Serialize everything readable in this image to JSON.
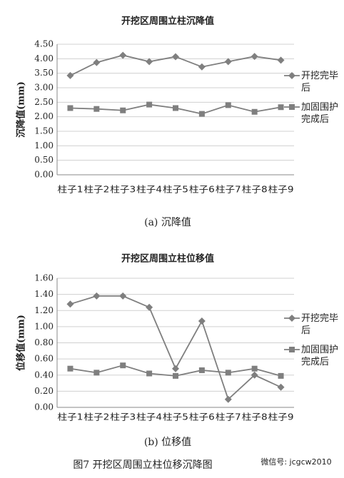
{
  "chart_data": [
    {
      "type": "line",
      "title": "开挖区周围立柱沉降值",
      "y_label": "沉降值(mm)",
      "caption": "(a) 沉降值",
      "categories": [
        "柱子1",
        "柱子2",
        "柱子3",
        "柱子4",
        "柱子5",
        "柱子6",
        "柱子7",
        "柱子8",
        "柱子9"
      ],
      "series": [
        {
          "name": "开挖完毕后",
          "color": "#7f7f7f",
          "marker": "diamond",
          "values": [
            3.42,
            3.87,
            4.12,
            3.9,
            4.07,
            3.72,
            3.9,
            4.08,
            3.95
          ]
        },
        {
          "name": "加固围护完成后",
          "color": "#7f7f7f",
          "marker": "square",
          "values": [
            2.3,
            2.27,
            2.22,
            2.42,
            2.3,
            2.1,
            2.4,
            2.17,
            2.33
          ]
        }
      ],
      "ylim": [
        0,
        4.5
      ],
      "yticks": [
        {
          "value": 0,
          "label": "0.00"
        },
        {
          "value": 0.5,
          "label": "0.50"
        },
        {
          "value": 1,
          "label": "1.00"
        },
        {
          "value": 1.5,
          "label": "1.50"
        },
        {
          "value": 2,
          "label": "2.00"
        },
        {
          "value": 2.5,
          "label": "2.50"
        },
        {
          "value": 3,
          "label": "3.00"
        },
        {
          "value": 3.5,
          "label": "3.50"
        },
        {
          "value": 4,
          "label": "4.00"
        },
        {
          "value": 4.5,
          "label": "4.50"
        }
      ],
      "grid": true,
      "legend": "right"
    },
    {
      "type": "line",
      "title": "开挖区周围立柱位移值",
      "y_label": "位移值(mm)",
      "caption": "(b) 位移值",
      "categories": [
        "柱子1",
        "柱子2",
        "柱子3",
        "柱子4",
        "柱子5",
        "柱子6",
        "柱子7",
        "柱子8",
        "柱子9"
      ],
      "series": [
        {
          "name": "开挖完毕后",
          "color": "#7f7f7f",
          "marker": "diamond",
          "values": [
            1.28,
            1.38,
            1.38,
            1.24,
            0.48,
            1.07,
            0.1,
            0.4,
            0.25
          ]
        },
        {
          "name": "加固围护完成后",
          "color": "#7f7f7f",
          "marker": "square",
          "values": [
            0.48,
            0.43,
            0.52,
            0.42,
            0.39,
            0.46,
            0.43,
            0.48,
            0.39
          ]
        }
      ],
      "ylim": [
        0,
        1.6
      ],
      "yticks": [
        {
          "value": 0,
          "label": "0.00"
        },
        {
          "value": 0.2,
          "label": "0.20"
        },
        {
          "value": 0.4,
          "label": "0.40"
        },
        {
          "value": 0.6,
          "label": "0.60"
        },
        {
          "value": 0.8,
          "label": "0.80"
        },
        {
          "value": 1,
          "label": "1.00"
        },
        {
          "value": 1.2,
          "label": "1.20"
        },
        {
          "value": 1.4,
          "label": "1.40"
        },
        {
          "value": 1.6,
          "label": "1.60"
        }
      ],
      "grid": true,
      "legend": "right"
    }
  ],
  "caption": "图7  开挖区周围立柱位移沉降图",
  "watermark": "微信号: jcgcw2010"
}
